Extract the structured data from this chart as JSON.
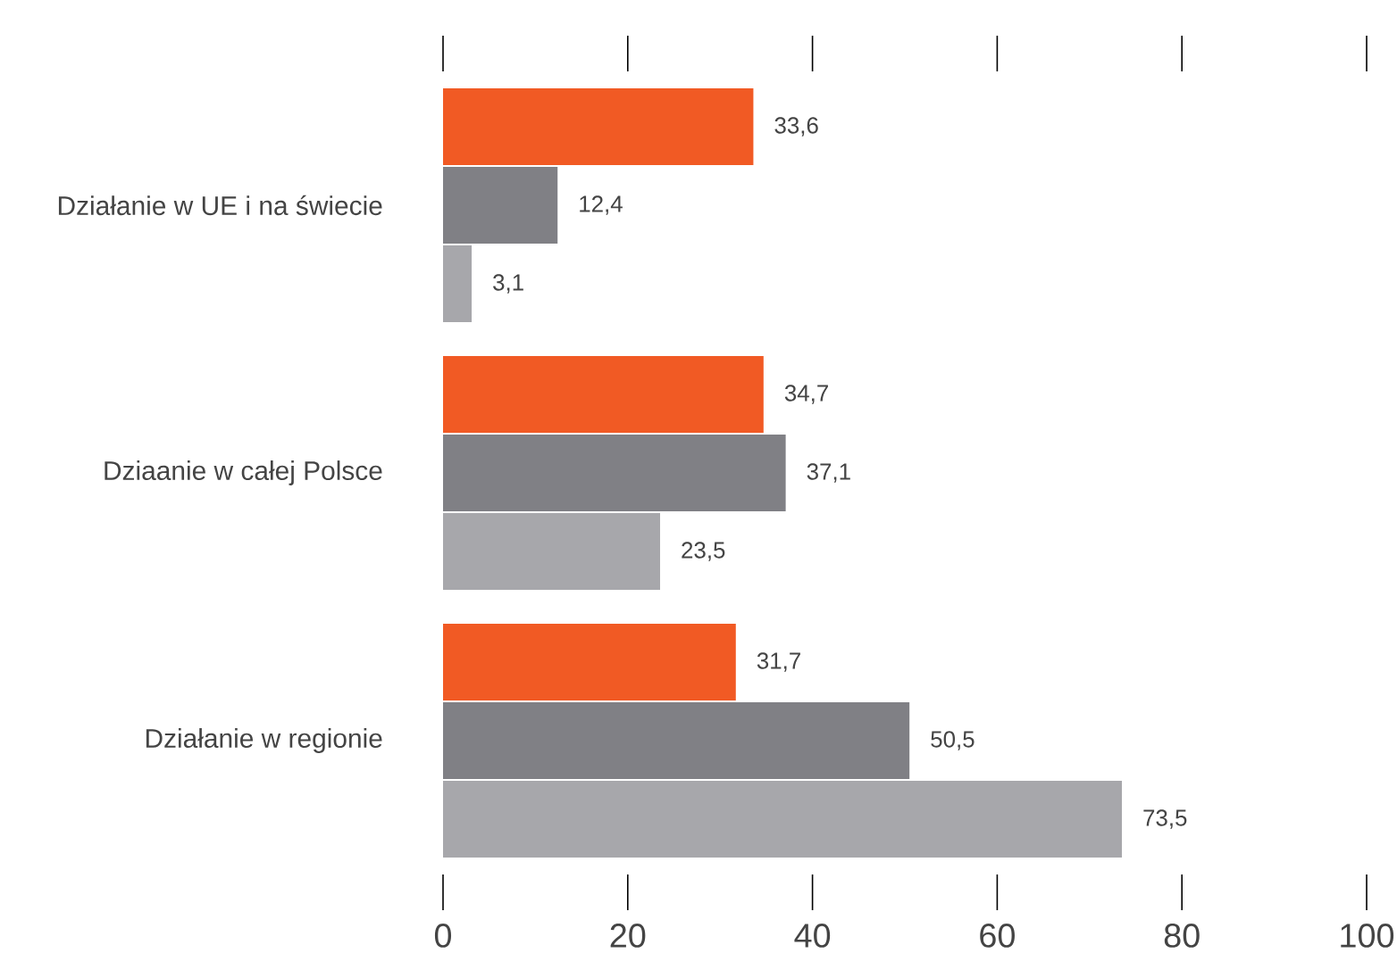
{
  "chart_data": {
    "type": "bar",
    "orientation": "horizontal",
    "categories": [
      "Działanie w UE i na świecie",
      "Dziaanie w całej Polsce",
      "Działanie w regionie"
    ],
    "series": [
      {
        "color": "#f15a24",
        "values": [
          33.6,
          34.7,
          31.7
        ],
        "value_labels": [
          "33,6",
          "34,7",
          "31,7"
        ]
      },
      {
        "color": "#808085",
        "values": [
          12.4,
          37.1,
          50.5
        ],
        "value_labels": [
          "12,4",
          "37,1",
          "50,5"
        ]
      },
      {
        "color": "#a7a7ab",
        "values": [
          3.1,
          23.5,
          73.5
        ],
        "value_labels": [
          "3,1",
          "23,5",
          "73,5"
        ]
      }
    ],
    "xlim": [
      0,
      100
    ],
    "xticks": [
      0,
      20,
      40,
      60,
      80,
      100
    ]
  }
}
